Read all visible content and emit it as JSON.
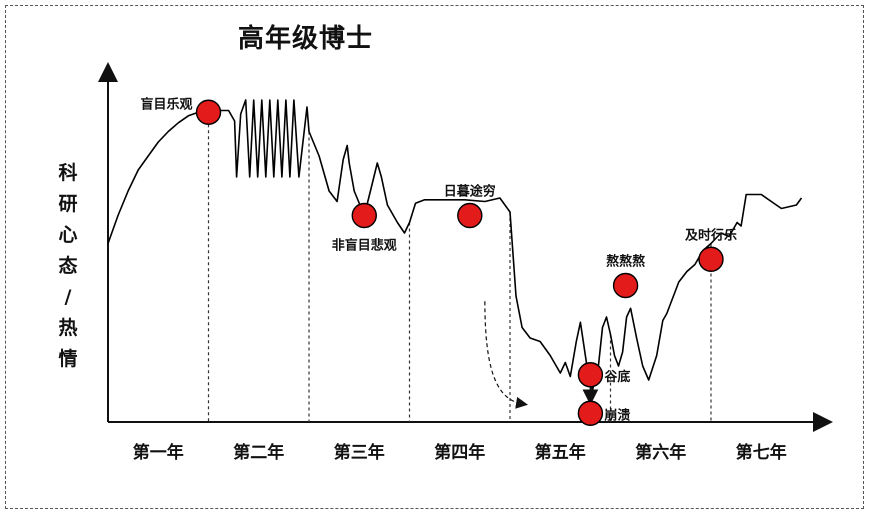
{
  "chart_data": {
    "type": "line",
    "title": "高年级博士",
    "ylabel_chars": [
      "科",
      "研",
      "心",
      "态",
      "/",
      "热",
      "情"
    ],
    "categories": [
      "第一年",
      "第二年",
      "第三年",
      "第四年",
      "第五年",
      "第六年",
      "第七年"
    ],
    "xlim": [
      0,
      7
    ],
    "ylim": [
      0,
      10
    ],
    "grid": false,
    "legend": "none",
    "line_color": "#000000",
    "marker_color": "#e31b1b",
    "curve": [
      [
        0.0,
        5.1
      ],
      [
        0.1,
        5.9
      ],
      [
        0.2,
        6.6
      ],
      [
        0.3,
        7.2
      ],
      [
        0.4,
        7.6
      ],
      [
        0.5,
        8.0
      ],
      [
        0.6,
        8.3
      ],
      [
        0.7,
        8.55
      ],
      [
        0.8,
        8.75
      ],
      [
        0.9,
        8.85
      ],
      [
        1.0,
        8.85
      ],
      [
        1.1,
        8.9
      ],
      [
        1.2,
        8.9
      ],
      [
        1.26,
        8.6
      ],
      [
        1.28,
        7.0
      ],
      [
        1.32,
        8.8
      ],
      [
        1.37,
        9.2
      ],
      [
        1.41,
        7.0
      ],
      [
        1.45,
        9.2
      ],
      [
        1.49,
        7.0
      ],
      [
        1.53,
        9.2
      ],
      [
        1.57,
        7.0
      ],
      [
        1.61,
        9.2
      ],
      [
        1.65,
        7.0
      ],
      [
        1.69,
        9.2
      ],
      [
        1.73,
        7.0
      ],
      [
        1.77,
        9.2
      ],
      [
        1.81,
        7.0
      ],
      [
        1.85,
        9.2
      ],
      [
        1.9,
        7.0
      ],
      [
        1.98,
        9.0
      ],
      [
        2.0,
        8.3
      ],
      [
        2.1,
        7.6
      ],
      [
        2.2,
        6.6
      ],
      [
        2.28,
        6.3
      ],
      [
        2.34,
        7.5
      ],
      [
        2.38,
        7.9
      ],
      [
        2.4,
        7.4
      ],
      [
        2.45,
        6.6
      ],
      [
        2.55,
        5.9
      ],
      [
        2.62,
        6.7
      ],
      [
        2.68,
        7.4
      ],
      [
        2.72,
        7.0
      ],
      [
        2.78,
        6.2
      ],
      [
        2.88,
        5.7
      ],
      [
        2.95,
        5.4
      ],
      [
        3.0,
        5.7
      ],
      [
        3.06,
        6.25
      ],
      [
        3.15,
        6.35
      ],
      [
        3.35,
        6.35
      ],
      [
        3.55,
        6.35
      ],
      [
        3.75,
        6.3
      ],
      [
        3.9,
        6.4
      ],
      [
        4.0,
        6.0
      ],
      [
        4.06,
        3.6
      ],
      [
        4.12,
        2.7
      ],
      [
        4.2,
        2.4
      ],
      [
        4.3,
        2.3
      ],
      [
        4.4,
        1.9
      ],
      [
        4.5,
        1.4
      ],
      [
        4.55,
        1.7
      ],
      [
        4.6,
        1.3
      ],
      [
        4.66,
        2.3
      ],
      [
        4.7,
        2.85
      ],
      [
        4.76,
        1.7
      ],
      [
        4.82,
        0.9
      ],
      [
        4.88,
        1.6
      ],
      [
        4.92,
        2.7
      ],
      [
        4.96,
        3.0
      ],
      [
        5.0,
        2.5
      ],
      [
        5.04,
        1.9
      ],
      [
        5.08,
        1.6
      ],
      [
        5.12,
        2.0
      ],
      [
        5.16,
        3.0
      ],
      [
        5.2,
        3.25
      ],
      [
        5.26,
        2.4
      ],
      [
        5.32,
        1.6
      ],
      [
        5.38,
        1.2
      ],
      [
        5.46,
        1.9
      ],
      [
        5.52,
        2.9
      ],
      [
        5.56,
        3.1
      ],
      [
        5.6,
        3.4
      ],
      [
        5.68,
        4.0
      ],
      [
        5.76,
        4.3
      ],
      [
        5.84,
        4.5
      ],
      [
        5.92,
        4.9
      ],
      [
        6.0,
        5.1
      ],
      [
        6.1,
        5.4
      ],
      [
        6.18,
        5.3
      ],
      [
        6.26,
        5.7
      ],
      [
        6.3,
        5.6
      ],
      [
        6.35,
        6.5
      ],
      [
        6.5,
        6.5
      ],
      [
        6.6,
        6.3
      ],
      [
        6.7,
        6.1
      ],
      [
        6.85,
        6.2
      ],
      [
        6.9,
        6.4
      ]
    ],
    "annotations": [
      {
        "label": "盲目乐观",
        "x": 1.0,
        "y": 8.85,
        "label_pos": "left"
      },
      {
        "label": "非盲目悲观",
        "x": 2.55,
        "y": 5.9,
        "label_pos": "below"
      },
      {
        "label": "日暮途穷",
        "x": 3.6,
        "y": 5.9,
        "label_pos": "above"
      },
      {
        "label": "谷底",
        "x": 4.8,
        "y": 1.35,
        "label_pos": "right"
      },
      {
        "label": "崩溃",
        "x": 4.8,
        "y": 0.25,
        "label_pos": "right"
      },
      {
        "label": "熬熬熬",
        "x": 5.15,
        "y": 3.9,
        "label_pos": "above"
      },
      {
        "label": "及时行乐",
        "x": 6.0,
        "y": 4.65,
        "label_pos": "above"
      }
    ]
  }
}
